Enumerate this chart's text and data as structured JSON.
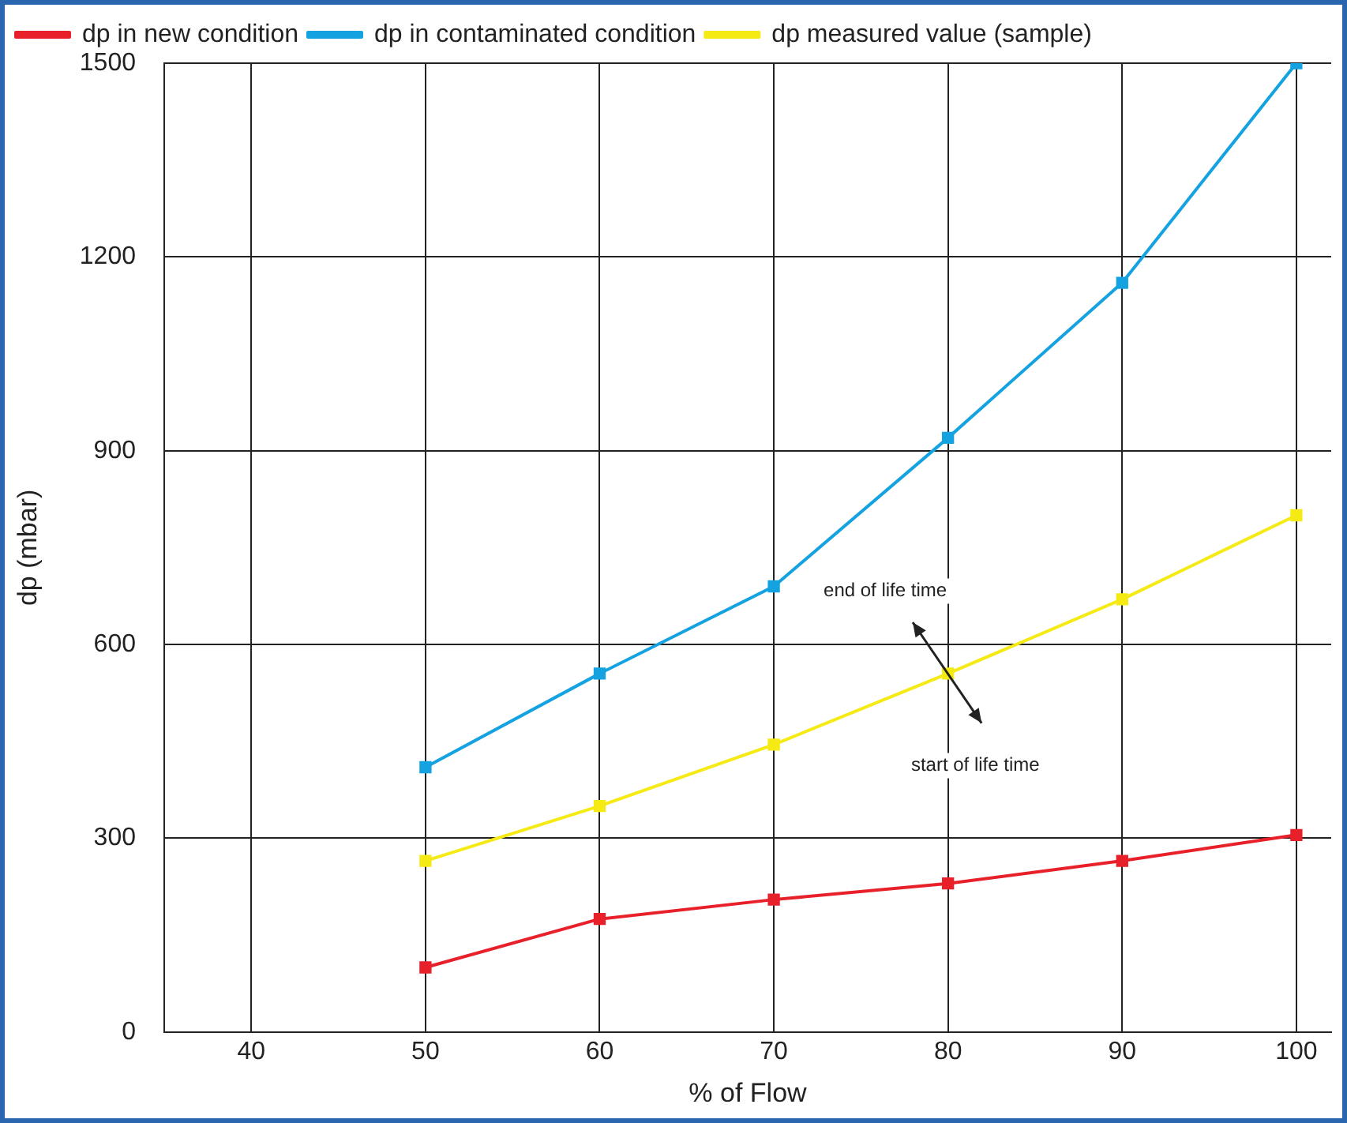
{
  "chart_data": {
    "type": "line",
    "xlabel": "% of Flow",
    "ylabel": "dp (mbar)",
    "x": [
      50,
      60,
      70,
      80,
      90,
      100
    ],
    "series": [
      {
        "name": "dp in new condition",
        "color": "#e8202a",
        "values": [
          100,
          175,
          205,
          230,
          265,
          305
        ]
      },
      {
        "name": "dp in contaminated condition",
        "color": "#14a3e0",
        "values": [
          410,
          555,
          690,
          920,
          1160,
          1500
        ]
      },
      {
        "name": "dp measured value (sample)",
        "color": "#f5ea14",
        "values": [
          265,
          350,
          445,
          555,
          670,
          800
        ]
      }
    ],
    "xlim": [
      35,
      102
    ],
    "xticks": [
      40,
      50,
      60,
      70,
      80,
      90,
      100
    ],
    "ylim": [
      0,
      1500
    ],
    "yticks": [
      0,
      300,
      600,
      900,
      1200,
      1500
    ],
    "grid": true,
    "legend": "top left",
    "marker": "square",
    "line_style": "solid",
    "annotations": [
      "end of life time",
      "start of life time"
    ]
  }
}
